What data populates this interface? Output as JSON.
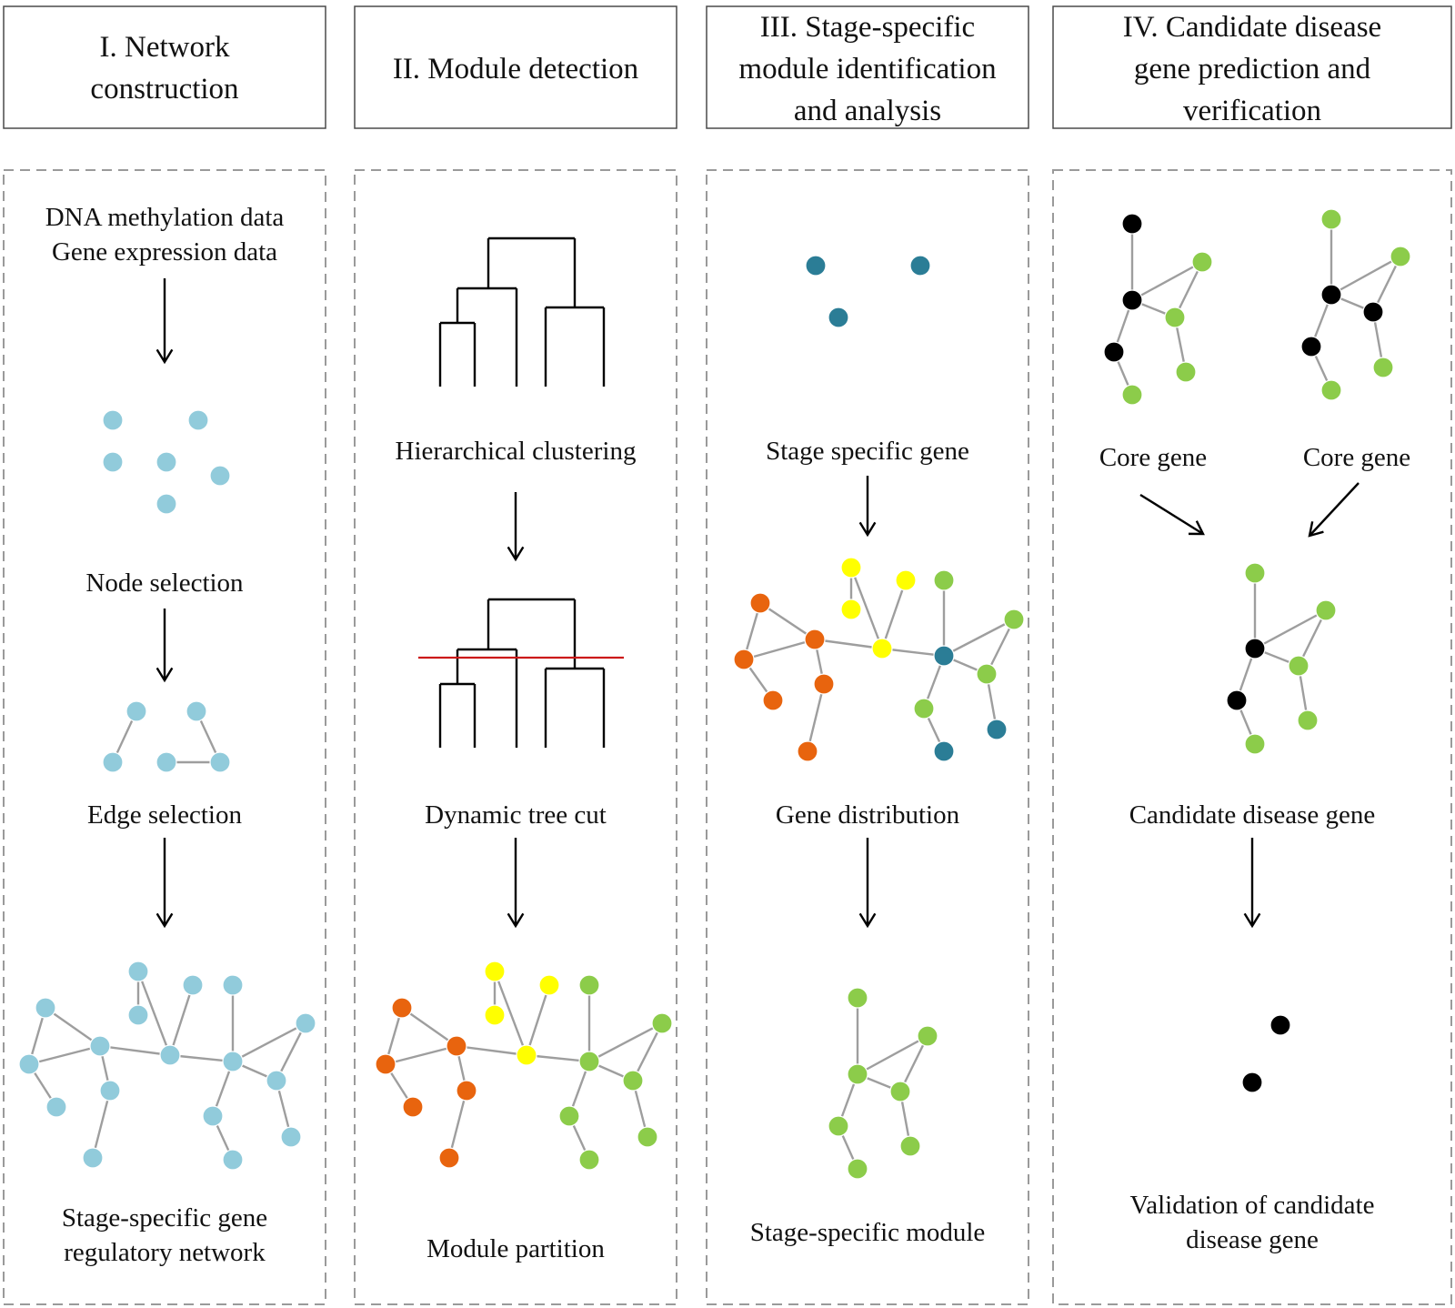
{
  "colors": {
    "light_blue": "#91cbdb",
    "teal": "#2b7d96",
    "orange": "#e8640e",
    "yellow": "#ffff00",
    "green": "#8ccc4a",
    "black": "#000000",
    "cut_line": "#cc1a1a"
  },
  "columns": [
    {
      "id": "col1",
      "title": [
        "I. Network",
        "construction"
      ],
      "labels": {
        "input": [
          "DNA methylation data",
          "Gene expression data"
        ],
        "node_selection": [
          "Node selection"
        ],
        "edge_selection": [
          "Edge selection"
        ],
        "network": [
          "Stage-specific gene",
          "regulatory network"
        ]
      }
    },
    {
      "id": "col2",
      "title": [
        "II. Module detection"
      ],
      "labels": {
        "clustering": [
          "Hierarchical clustering"
        ],
        "tree_cut": [
          "Dynamic tree cut"
        ],
        "partition": [
          "Module partition"
        ]
      }
    },
    {
      "id": "col3",
      "title": [
        "III. Stage-specific",
        "module identification",
        "and analysis"
      ],
      "labels": {
        "specific_gene": [
          "Stage specific gene"
        ],
        "distribution": [
          "Gene distribution"
        ],
        "module": [
          "Stage-specific module"
        ]
      }
    },
    {
      "id": "col4",
      "title": [
        "IV. Candidate disease",
        "gene prediction and",
        "verification"
      ],
      "labels": {
        "core_left": [
          "Core gene"
        ],
        "core_right": [
          "Core gene"
        ],
        "candidate": [
          "Candidate disease gene"
        ],
        "validation": [
          "Validation of candidate",
          "disease gene"
        ]
      }
    }
  ]
}
